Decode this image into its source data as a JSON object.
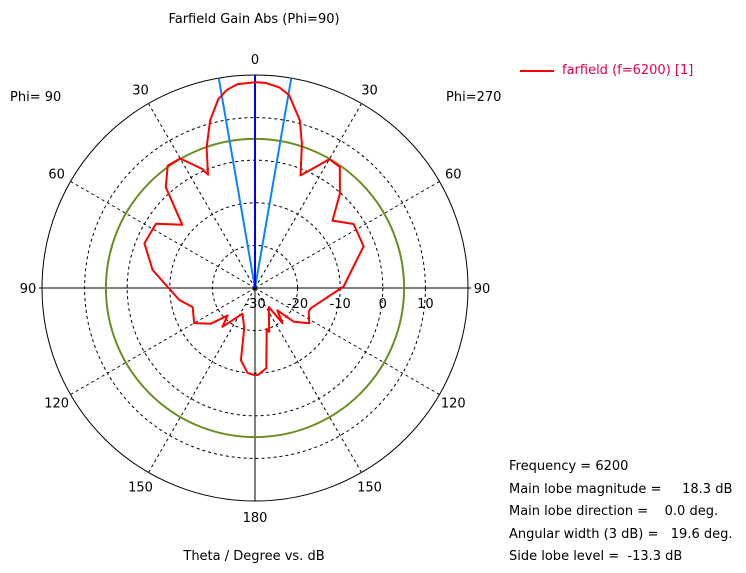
{
  "chart_data": {
    "type": "polar",
    "title": "Farfield Gain Abs (Phi=90)",
    "xlabel": "Theta / Degree vs. dB",
    "left_label": "Phi= 90",
    "right_label": "Phi=270",
    "radial_range": [
      -30,
      20
    ],
    "radial_ticks": [
      "-30",
      "-20",
      "-10",
      "0",
      "10"
    ],
    "angle_ticks": [
      "0",
      "30",
      "60",
      "90",
      "120",
      "150",
      "180"
    ],
    "grid": true,
    "legend_position": "top-right",
    "series": [
      {
        "name": "farfield (f=6200) [1]",
        "color": "#ff0000",
        "phi_270_side": [
          [
            0,
            18.3
          ],
          [
            3,
            18.2
          ],
          [
            7,
            17.4
          ],
          [
            10,
            16
          ],
          [
            15,
            10.7
          ],
          [
            18,
            5.6
          ],
          [
            22,
            -1.5
          ],
          [
            24,
            -0.2
          ],
          [
            30,
            4.9
          ],
          [
            35,
            4.7
          ],
          [
            42,
            -0.2
          ],
          [
            49,
            -5.9
          ],
          [
            57,
            -2.4
          ],
          [
            69,
            -2.7
          ],
          [
            89,
            -9.2
          ],
          [
            110,
            -16.1
          ],
          [
            114,
            -16.2
          ],
          [
            123,
            -14.8
          ],
          [
            131,
            -17.9
          ],
          [
            135,
            -22.6
          ],
          [
            142,
            -19.5
          ],
          [
            144,
            -24.5
          ],
          [
            162,
            -19.2
          ],
          [
            164,
            -20
          ],
          [
            172,
            -11
          ],
          [
            178,
            -9.6
          ],
          [
            180,
            -9.5
          ]
        ],
        "phi_90_side": [
          [
            0,
            18.3
          ],
          [
            5,
            18
          ],
          [
            8,
            17
          ],
          [
            11,
            15.2
          ],
          [
            15,
            10.7
          ],
          [
            19,
            4.9
          ],
          [
            22.5,
            -1.2
          ],
          [
            24,
            0.6
          ],
          [
            30,
            5.1
          ],
          [
            35.5,
            5.3
          ],
          [
            41.5,
            1.6
          ],
          [
            49,
            -7.4
          ],
          [
            57,
            -2.3
          ],
          [
            68,
            -2
          ],
          [
            80,
            -5.6
          ],
          [
            99,
            -12
          ],
          [
            107,
            -14.7
          ],
          [
            120,
            -13.5
          ],
          [
            129,
            -16.7
          ],
          [
            135,
            -20.9
          ],
          [
            140,
            -18.1
          ],
          [
            154,
            -23.3
          ],
          [
            165,
            -20.2
          ],
          [
            169,
            -12.7
          ],
          [
            175,
            -10
          ],
          [
            180,
            -9.5
          ]
        ]
      }
    ],
    "main_lobe_direction_deg": 0,
    "beamwidth_deg": 19.6,
    "side_lobe_circle_db": 5.0,
    "colors": {
      "main_lobe": "#0000ff",
      "beamwidth": "#0a84ff",
      "side_lobe_circle": "#6b8e23",
      "curve": "#ff0000"
    }
  },
  "info": {
    "frequency": "Frequency = 6200",
    "magnitude": "Main lobe magnitude =     18.3 dB",
    "direction": "Main lobe direction =    0.0 deg.",
    "width": "Angular width (3 dB) =   19.6 deg.",
    "side_lobe": "Side lobe level =  -13.3 dB"
  }
}
